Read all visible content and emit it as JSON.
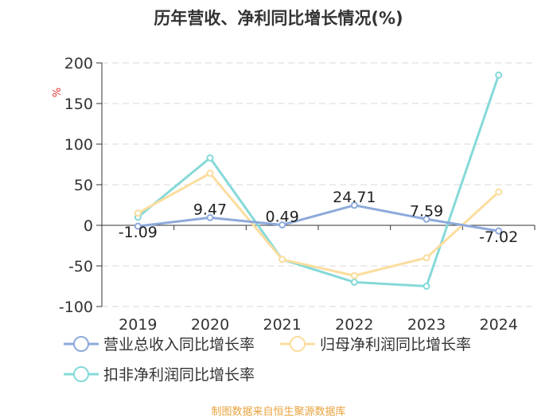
{
  "chart_data": {
    "type": "line",
    "title": "历年营收、净利同比增长情况(%)",
    "ylabel": "%",
    "xlabel": "",
    "categories": [
      "2019",
      "2020",
      "2021",
      "2022",
      "2023",
      "2024"
    ],
    "ylim": [
      -100,
      200
    ],
    "yticks": [
      200,
      150,
      100,
      50,
      0,
      -50,
      -100
    ],
    "grid": true,
    "legend_position": "bottom",
    "series": [
      {
        "name": "营业总收入同比增长率",
        "color": "#8eaadb",
        "values": [
          -1.09,
          9.47,
          0.49,
          24.71,
          7.59,
          -7.02
        ],
        "labels": [
          "-1.09",
          "9.47",
          "0.49",
          "24.71",
          "7.59",
          "-7.02"
        ]
      },
      {
        "name": "归母净利润同比增长率",
        "color": "#fbdd9e",
        "values": [
          15,
          64,
          -42,
          -62,
          -40,
          41
        ]
      },
      {
        "name": "扣非净利润同比增长率",
        "color": "#86d9d9",
        "values": [
          10,
          83,
          -42,
          -70,
          -75,
          185
        ]
      }
    ]
  },
  "source": "制图数据来自恒生聚源数据库",
  "colors": {
    "source_text": "#e8a33d",
    "unit": "#e53030",
    "axis": "#333333",
    "grid": "#d8d8d8"
  }
}
